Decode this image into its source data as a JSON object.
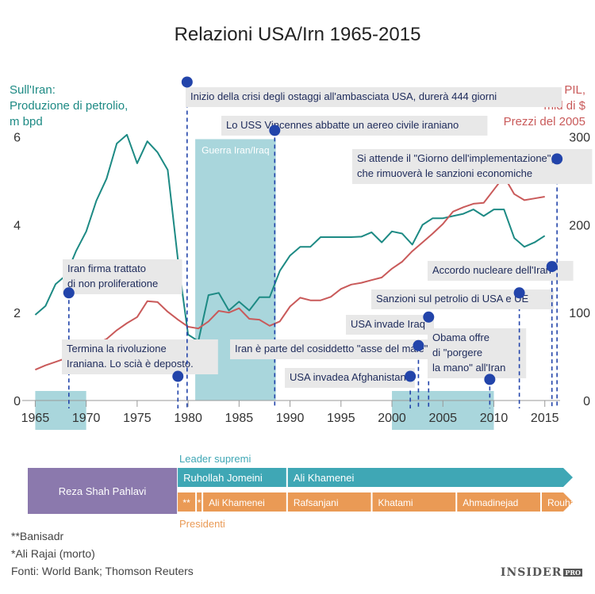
{
  "title": "Relazioni USA/Irn 1965-2015",
  "left_axis_label": [
    "Sull'Iran:",
    "Produzione di petrolio,",
    "m bpd"
  ],
  "right_axis_label": [
    "PIL,",
    "mld di $",
    "Prezzi del 2005"
  ],
  "colors": {
    "oil": "#1d8a84",
    "gdp": "#c95a5a",
    "band": "#a9d6dc",
    "marker": "#2244aa",
    "leader": "#3fa7b5",
    "president": "#ea9a55",
    "shah": "#8b79ad"
  },
  "chart_data": {
    "type": "line",
    "x_range": [
      1964.5,
      2016.5
    ],
    "x_ticks": [
      "1965",
      "1970",
      "1975",
      "1980",
      "1985",
      "1990",
      "1995",
      "2000",
      "2005",
      "2010",
      "2015"
    ],
    "x_tick_values": [
      1965,
      1970,
      1975,
      1980,
      1985,
      1990,
      1995,
      2000,
      2005,
      2010,
      2015
    ],
    "y_left": {
      "range": [
        0,
        6.5
      ],
      "ticks": [
        "0",
        "2",
        "4",
        "6"
      ],
      "tick_values": [
        0,
        2,
        4,
        6
      ]
    },
    "y_right": {
      "range": [
        0,
        325
      ],
      "ticks": [
        "0",
        "100",
        "200",
        "300"
      ],
      "tick_values": [
        0,
        100,
        200,
        300
      ]
    },
    "series": [
      {
        "name": "Produzione di petrolio (m bpd)",
        "axis": "left",
        "x": [
          1965,
          1966,
          1967,
          1968,
          1969,
          1970,
          1971,
          1972,
          1973,
          1974,
          1975,
          1976,
          1977,
          1978,
          1979,
          1980,
          1981,
          1982,
          1983,
          1984,
          1985,
          1986,
          1987,
          1988,
          1989,
          1990,
          1991,
          1992,
          1993,
          1994,
          1995,
          1996,
          1997,
          1998,
          1999,
          2000,
          2001,
          2002,
          2003,
          2004,
          2005,
          2006,
          2007,
          2008,
          2009,
          2010,
          2011,
          2012,
          2013,
          2014,
          2015
        ],
        "values": [
          1.95,
          2.15,
          2.65,
          2.85,
          3.4,
          3.85,
          4.55,
          5.05,
          5.85,
          6.05,
          5.4,
          5.9,
          5.65,
          5.25,
          3.2,
          1.5,
          1.35,
          2.4,
          2.45,
          2.05,
          2.25,
          2.05,
          2.35,
          2.35,
          2.95,
          3.3,
          3.5,
          3.5,
          3.72,
          3.72,
          3.72,
          3.72,
          3.73,
          3.83,
          3.6,
          3.85,
          3.8,
          3.55,
          4.0,
          4.15,
          4.15,
          4.2,
          4.25,
          4.35,
          4.2,
          4.35,
          4.35,
          3.7,
          3.5,
          3.6,
          3.75
        ]
      },
      {
        "name": "PIL (mld di $, prezzi del 2005)",
        "axis": "right",
        "x": [
          1965,
          1966,
          1967,
          1968,
          1969,
          1970,
          1971,
          1972,
          1973,
          1974,
          1975,
          1976,
          1977,
          1978,
          1979,
          1980,
          1981,
          1982,
          1983,
          1984,
          1985,
          1986,
          1987,
          1988,
          1989,
          1990,
          1991,
          1992,
          1993,
          1994,
          1995,
          1996,
          1997,
          1998,
          1999,
          2000,
          2001,
          2002,
          2003,
          2004,
          2005,
          2006,
          2007,
          2008,
          2009,
          2010,
          2011,
          2012,
          2013,
          2014,
          2015
        ],
        "values": [
          35,
          40,
          44,
          48,
          53,
          58,
          65,
          70,
          80,
          88,
          95,
          113,
          112,
          101,
          92,
          84,
          82,
          90,
          102,
          100,
          105,
          93,
          92,
          85,
          90,
          107,
          117,
          114,
          114,
          118,
          127,
          132,
          134,
          137,
          140,
          150,
          158,
          170,
          180,
          190,
          201,
          215,
          220,
          224,
          225,
          240,
          255,
          235,
          228,
          230,
          232
        ]
      }
    ],
    "bands": [
      {
        "label": "",
        "start": 1965,
        "end": 1970
      },
      {
        "label": "Guerra Iran/Iraq",
        "start": 1980.7,
        "end": 1988.6
      },
      {
        "label": "",
        "start": 2000,
        "end": 2010
      }
    ],
    "events": [
      {
        "year": 1968.3,
        "oil": 2.45,
        "text": [
          "Iran firma trattato",
          "di non proliferatione"
        ]
      },
      {
        "year": 1979.0,
        "oil": 0.55,
        "text": [
          "Termina la rivoluzione",
          "Iraniana. Lo scià è deposto."
        ]
      },
      {
        "year": 1979.9,
        "oil": 7.25,
        "text": [
          "Inizio della crisi degli ostaggi all'ambasciata USA, durerà 444 giorni"
        ]
      },
      {
        "year": 1988.5,
        "oil": 6.15,
        "text": [
          "Lo USS Vincennes abbatte un aereo civile iraniano"
        ]
      },
      {
        "year": 2001.8,
        "oil": 0.55,
        "text": [
          "USA invadea Afghanistan"
        ]
      },
      {
        "year": 2002.6,
        "oil": 1.25,
        "text": [
          "Iran è parte del cosiddetto \"asse del male\""
        ]
      },
      {
        "year": 2003.6,
        "oil": 1.9,
        "text": [
          "USA invade Iraq"
        ]
      },
      {
        "year": 2009.6,
        "oil": 0.48,
        "text": [
          "Obama offre",
          "di \"porgere",
          "la mano\" all'Iran"
        ]
      },
      {
        "year": 2012.5,
        "oil": 2.45,
        "text": [
          "Sanzioni sul petrolio di USA e UE"
        ]
      },
      {
        "year": 2015.7,
        "oil": 3.05,
        "text": [
          "Accordo nucleare dell'Iran"
        ]
      },
      {
        "year": 2016.2,
        "oil": 5.5,
        "text": [
          "Si attende il \"Giorno dell'implementazione\",",
          "che rimuoverà le sanzioni economiche"
        ]
      }
    ]
  },
  "timeline": {
    "leader_title": "Leader supremi",
    "president_title": "Presidenti",
    "shah": {
      "label": "Reza Shah Pahlavi",
      "start": 1965,
      "end": 1979.1
    },
    "leaders": [
      {
        "label": "Ruhollah Jomeini",
        "start": 1979.1,
        "end": 1989.5
      },
      {
        "label": "Ali Khamenei",
        "start": 1989.5,
        "end": 2016.5
      }
    ],
    "presidents": [
      {
        "label": "**",
        "start": 1979.1,
        "end": 1980.9
      },
      {
        "label": "*",
        "start": 1980.9,
        "end": 1981.5
      },
      {
        "label": "Ali Khamenei",
        "start": 1981.5,
        "end": 1989.5
      },
      {
        "label": "Rafsanjani",
        "start": 1989.5,
        "end": 1997.5
      },
      {
        "label": "Khatami",
        "start": 1997.5,
        "end": 2005.5
      },
      {
        "label": "Ahmadinejad",
        "start": 2005.5,
        "end": 2013.5
      },
      {
        "label": "Rouhani",
        "start": 2013.5,
        "end": 2016.5
      }
    ]
  },
  "footnotes": [
    "**Banisadr",
    "*Ali Rajai (morto)",
    "Fonti: World Bank; Thomson Reuters"
  ],
  "logo": {
    "main": "INSIDER",
    "sup": "PRO"
  }
}
